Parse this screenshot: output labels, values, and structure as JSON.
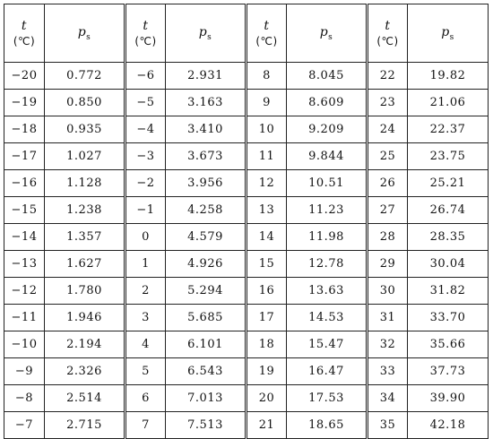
{
  "header": {
    "t_label": "t",
    "t_unit": "(℃)",
    "p_label": "p",
    "p_sub": "s"
  },
  "groups": [
    {
      "rows": [
        {
          "t": "−20",
          "p": "0.772"
        },
        {
          "t": "−19",
          "p": "0.850"
        },
        {
          "t": "−18",
          "p": "0.935"
        },
        {
          "t": "−17",
          "p": "1.027"
        },
        {
          "t": "−16",
          "p": "1.128"
        },
        {
          "t": "−15",
          "p": "1.238"
        },
        {
          "t": "−14",
          "p": "1.357"
        },
        {
          "t": "−13",
          "p": "1.627"
        },
        {
          "t": "−12",
          "p": "1.780"
        },
        {
          "t": "−11",
          "p": "1.946"
        },
        {
          "t": "−10",
          "p": "2.194"
        },
        {
          "t": "−9",
          "p": "2.326"
        },
        {
          "t": "−8",
          "p": "2.514"
        },
        {
          "t": "−7",
          "p": "2.715"
        }
      ]
    },
    {
      "rows": [
        {
          "t": "−6",
          "p": "2.931"
        },
        {
          "t": "−5",
          "p": "3.163"
        },
        {
          "t": "−4",
          "p": "3.410"
        },
        {
          "t": "−3",
          "p": "3.673"
        },
        {
          "t": "−2",
          "p": "3.956"
        },
        {
          "t": "−1",
          "p": "4.258"
        },
        {
          "t": "0",
          "p": "4.579"
        },
        {
          "t": "1",
          "p": "4.926"
        },
        {
          "t": "2",
          "p": "5.294"
        },
        {
          "t": "3",
          "p": "5.685"
        },
        {
          "t": "4",
          "p": "6.101"
        },
        {
          "t": "5",
          "p": "6.543"
        },
        {
          "t": "6",
          "p": "7.013"
        },
        {
          "t": "7",
          "p": "7.513"
        }
      ]
    },
    {
      "rows": [
        {
          "t": "8",
          "p": "8.045"
        },
        {
          "t": "9",
          "p": "8.609"
        },
        {
          "t": "10",
          "p": "9.209"
        },
        {
          "t": "11",
          "p": "9.844"
        },
        {
          "t": "12",
          "p": "10.51"
        },
        {
          "t": "13",
          "p": "11.23"
        },
        {
          "t": "14",
          "p": "11.98"
        },
        {
          "t": "15",
          "p": "12.78"
        },
        {
          "t": "16",
          "p": "13.63"
        },
        {
          "t": "17",
          "p": "14.53"
        },
        {
          "t": "18",
          "p": "15.47"
        },
        {
          "t": "19",
          "p": "16.47"
        },
        {
          "t": "20",
          "p": "17.53"
        },
        {
          "t": "21",
          "p": "18.65"
        }
      ]
    },
    {
      "rows": [
        {
          "t": "22",
          "p": "19.82"
        },
        {
          "t": "23",
          "p": "21.06"
        },
        {
          "t": "24",
          "p": "22.37"
        },
        {
          "t": "25",
          "p": "23.75"
        },
        {
          "t": "26",
          "p": "25.21"
        },
        {
          "t": "27",
          "p": "26.74"
        },
        {
          "t": "28",
          "p": "28.35"
        },
        {
          "t": "29",
          "p": "30.04"
        },
        {
          "t": "30",
          "p": "31.82"
        },
        {
          "t": "31",
          "p": "33.70"
        },
        {
          "t": "32",
          "p": "35.66"
        },
        {
          "t": "33",
          "p": "37.73"
        },
        {
          "t": "34",
          "p": "39.90"
        },
        {
          "t": "35",
          "p": "42.18"
        }
      ]
    }
  ]
}
